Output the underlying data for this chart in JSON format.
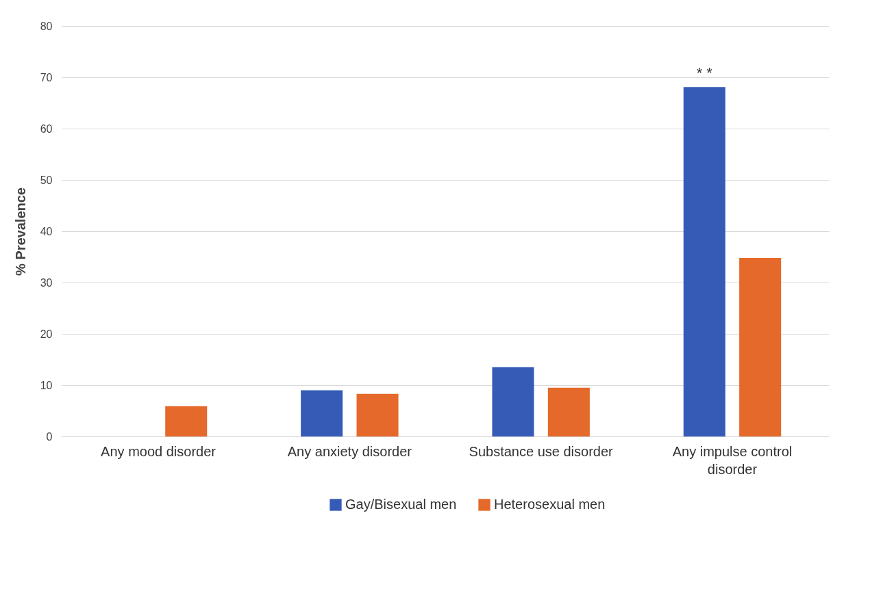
{
  "chart_data": {
    "type": "bar",
    "ylabel": "% Prevalence",
    "categories": [
      "Any mood disorder",
      "Any anxiety disorder",
      "Substance use disorder",
      "Any impulse control disorder"
    ],
    "series": [
      {
        "name": "Gay/Bisexual men",
        "color": "#355bb7",
        "values": [
          0,
          9.0,
          13.5,
          68.1
        ]
      },
      {
        "name": "Heterosexual men",
        "color": "#e5692a",
        "values": [
          5.9,
          8.3,
          9.5,
          34.8
        ]
      }
    ],
    "ylim": [
      0,
      80
    ],
    "yticks": [
      0,
      10,
      20,
      30,
      40,
      50,
      60,
      70,
      80
    ],
    "grid": "y",
    "legend": "bottom",
    "annotations": [
      "* *"
    ]
  }
}
